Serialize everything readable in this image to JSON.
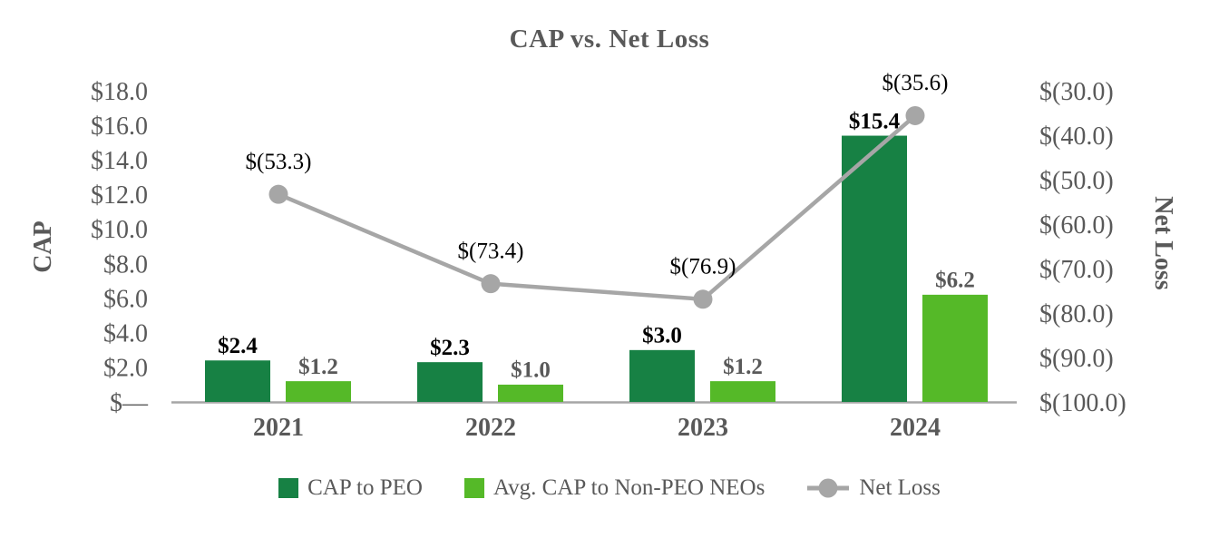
{
  "chart_data": {
    "type": "bar+line combo",
    "title": "CAP vs. Net Loss",
    "categories": [
      "2021",
      "2022",
      "2023",
      "2024"
    ],
    "series": [
      {
        "name": "CAP to PEO",
        "type": "bar",
        "axis": "left",
        "color": "#178144",
        "values": [
          2.4,
          2.3,
          3.0,
          15.4
        ],
        "labels": [
          "$2.4",
          "$2.3",
          "$3.0",
          "$15.4"
        ],
        "label_color": "#000000"
      },
      {
        "name": "Avg. CAP to Non-PEO NEOs",
        "type": "bar",
        "axis": "left",
        "color": "#55B928",
        "values": [
          1.2,
          1.0,
          1.2,
          6.2
        ],
        "labels": [
          "$1.2",
          "$1.0",
          "$1.2",
          "$6.2"
        ],
        "label_color": "#595959"
      },
      {
        "name": "Net Loss",
        "type": "line",
        "axis": "right",
        "color": "#A6A6A6",
        "values": [
          -53.3,
          -73.4,
          -76.9,
          -35.6
        ],
        "labels": [
          "$(53.3)",
          "$(73.4)",
          "$(76.9)",
          "$(35.6)"
        ],
        "label_color": "#000000"
      }
    ],
    "left_axis": {
      "title": "CAP",
      "min": 0,
      "max": 18,
      "step": 2,
      "tick_labels": [
        "$—",
        "$2.0",
        "$4.0",
        "$6.0",
        "$8.0",
        "$10.0",
        "$12.0",
        "$14.0",
        "$16.0",
        "$18.0"
      ]
    },
    "right_axis": {
      "title": "Net Loss",
      "min": -100,
      "max": -30,
      "step": 10,
      "tick_labels": [
        "$(100.0)",
        "$(90.0)",
        "$(80.0)",
        "$(70.0)",
        "$(60.0)",
        "$(50.0)",
        "$(40.0)",
        "$(30.0)"
      ]
    },
    "legend": [
      {
        "swatch": "square",
        "color": "#178144",
        "label": "CAP to PEO"
      },
      {
        "swatch": "square",
        "color": "#55B928",
        "label": "Avg. CAP to Non-PEO NEOs"
      },
      {
        "swatch": "line-marker",
        "color": "#A6A6A6",
        "label": "Net Loss"
      }
    ],
    "layout_hints": {
      "grid": "off",
      "legend_position": "bottom",
      "axis_line_color": "#A6A6A6",
      "text_color": "#595959"
    }
  }
}
